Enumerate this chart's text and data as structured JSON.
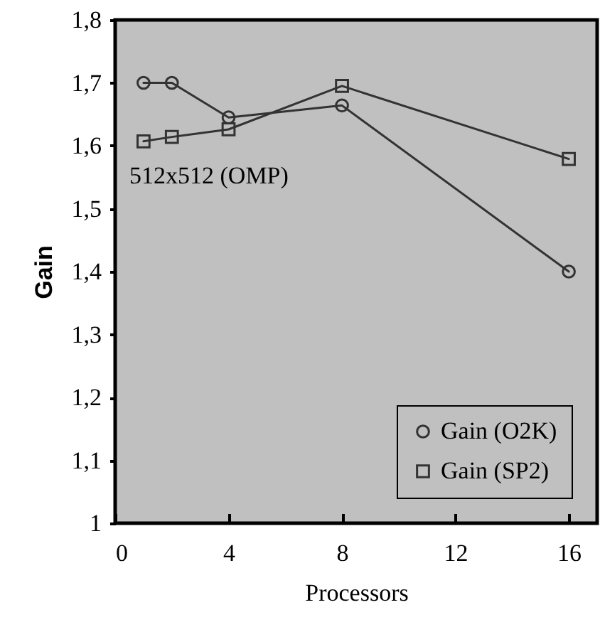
{
  "chart_data": {
    "type": "line",
    "xlabel": "Processors",
    "ylabel": "Gain",
    "annotations": [
      "512x512 (OMP)"
    ],
    "xlim": [
      0,
      17
    ],
    "xticks": [
      0,
      4,
      8,
      12,
      16
    ],
    "ylim": [
      1,
      1.8
    ],
    "yticks": [
      1,
      {
        "value": 1.1,
        "label": "1,1"
      },
      {
        "value": 1.2,
        "label": "1,2"
      },
      {
        "value": 1.3,
        "label": "1,3"
      },
      {
        "value": 1.4,
        "label": "1,4"
      },
      {
        "value": 1.5,
        "label": "1,5"
      },
      {
        "value": 1.6,
        "label": "1,6"
      },
      {
        "value": 1.7,
        "label": "1,7"
      },
      {
        "value": 1.8,
        "label": "1,8"
      }
    ],
    "x": [
      1,
      2,
      4,
      8,
      16
    ],
    "series": [
      {
        "name": "Gain (O2K)",
        "color": "#333333",
        "marker": "circle",
        "values": [
          1.7,
          1.7,
          1.645,
          1.664,
          1.4
        ]
      },
      {
        "name": "Gain (SP2)",
        "color": "#333333",
        "marker": "square",
        "values": [
          1.607,
          1.614,
          1.626,
          1.695,
          1.579
        ]
      }
    ],
    "grid": false,
    "legend": "bottom right"
  }
}
